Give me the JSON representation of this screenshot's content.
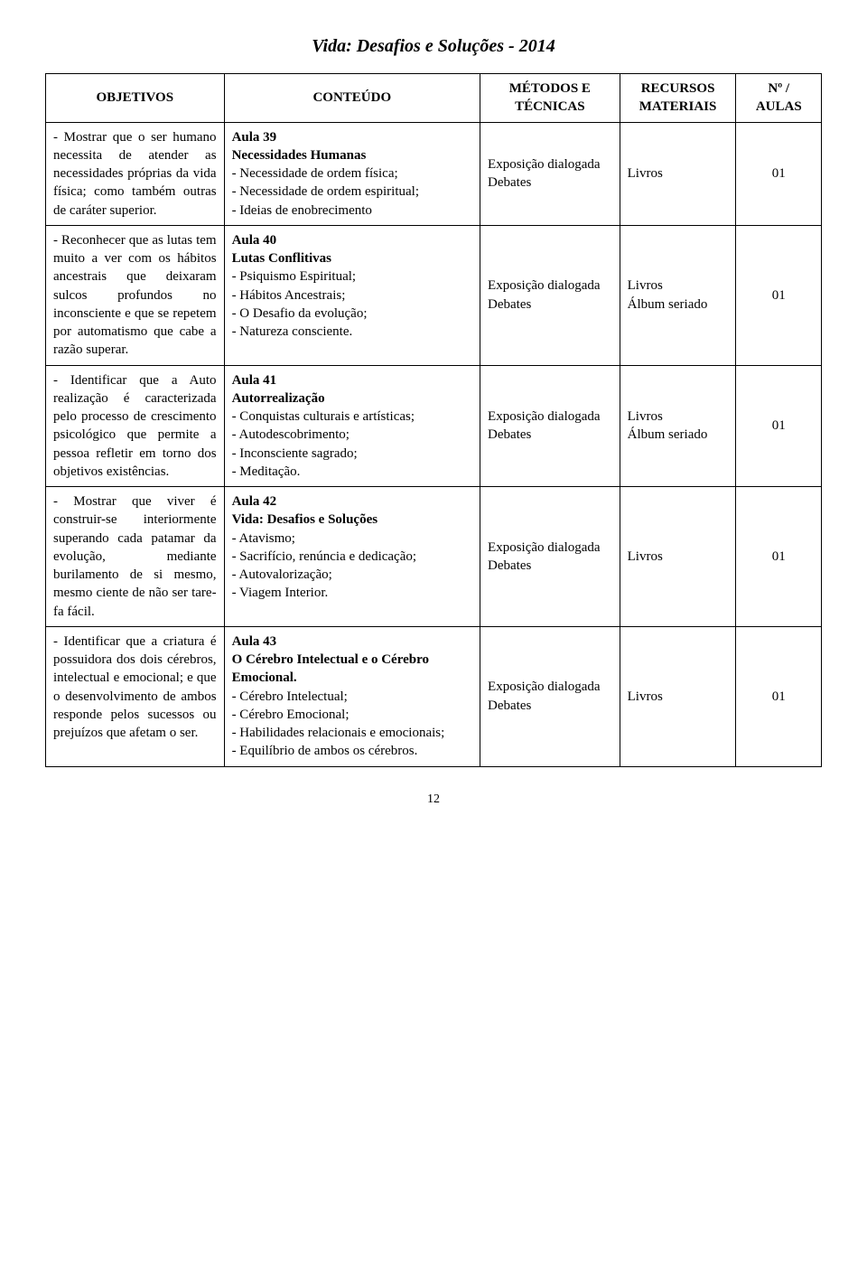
{
  "header_title": "Vida: Desafios e Soluções - 2014",
  "page_number": "12",
  "columns": {
    "c0": "OBJETIVOS",
    "c1": "CONTEÚDO",
    "c2": "MÉTODOS E\nTÉCNICAS",
    "c3": "RECURSOS\nMATERIAIS",
    "c4": "Nº /\nAULAS"
  },
  "rows": [
    {
      "objetivo": "- Mostrar que o ser humano necessita de atender as necessida­des próprias da vida física; como também outras de caráter supe­rior.",
      "aula_num": "Aula 39",
      "aula_title": "Necessidades Humanas",
      "items": [
        "- Necessidade de ordem física;",
        "- Necessidade de ordem espiri­tual;",
        "- Ideias de enobrecimento"
      ],
      "metodo": "Exposição dialogada\nDebates",
      "recurso": "Livros",
      "aulas": "01"
    },
    {
      "objetivo": "- Reconhecer que as lutas tem muito a ver com os hábitos ances­trais que deixaram sulcos profundos no inconsciente e que se repetem por automa­tismo que cabe a razão superar.",
      "aula_num": "Aula 40",
      "aula_title": "Lutas Conflitivas",
      "items": [
        "- Psiquismo Espiritual;",
        "- Hábitos Ancestrais;",
        "- O Desafio da evolução;",
        "- Natureza consciente."
      ],
      "metodo": "Exposição dialogada\nDebates",
      "recurso": "Livros\nÁlbum seriado",
      "aulas": "01"
    },
    {
      "objetivo": "- Identificar que a Auto realização é caracterizada pelo processo de cresci­mento psicológico que permite a pessoa refle­tir em torno dos obje­tivos existências.",
      "aula_num": "Aula 41",
      "aula_title": "Autorrealização",
      "items": [
        "- Conquistas culturais e artísti­cas;",
        "- Autodescobrimento;",
        "- Inconsciente sagrado;",
        "- Meditação."
      ],
      "metodo": "Exposição dialogada\nDebates",
      "recurso": "Livros\nÁlbum seriado",
      "aulas": "01"
    },
    {
      "objetivo": "- Mostrar que viver é construir-se interior­mente superando cada patamar da evolução, mediante burilamento de si mesmo, mesmo ciente de não ser tare­fa fácil.",
      "aula_num": "Aula 42",
      "aula_title": "Vida: Desafios e Soluções",
      "items": [
        "- Atavismo;",
        "- Sacrifício, renúncia e dedica­ção;",
        "- Autovalorização;",
        "- Viagem Interior."
      ],
      "metodo": "Exposição dialogada\nDebates",
      "recurso": "Livros",
      "aulas": "01"
    },
    {
      "objetivo": "- Identificar que a criatura é possuidora dos dois cérebros, intelectual e emocio­nal; e que o desenvol­vimento de ambos responde pelos suces­sos ou prejuízos que afetam o ser.",
      "aula_num": "Aula 43",
      "aula_title": "O Cérebro Intelectual e o Cé­rebro Emocional.",
      "items": [
        "- Cérebro Intelectual;",
        "- Cérebro Emocional;",
        "- Habilidades relacionais e emo­cionais;",
        "- Equilíbrio de ambos os cére­bros."
      ],
      "metodo": "Exposição dialogada\nDebates",
      "recurso": "Livros",
      "aulas": "01"
    }
  ]
}
